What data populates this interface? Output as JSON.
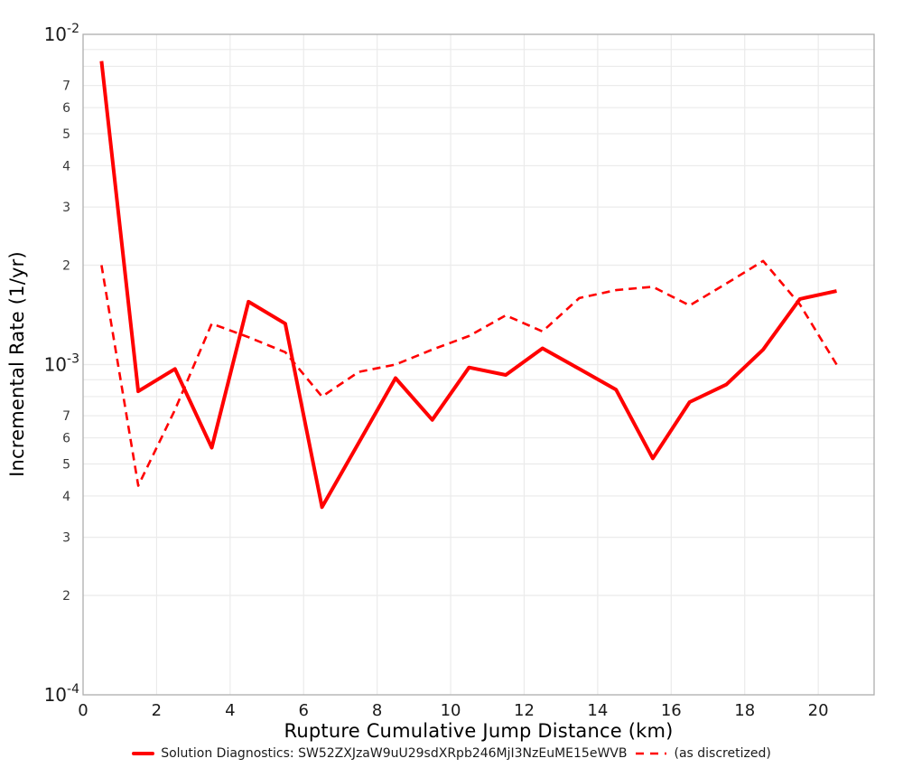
{
  "figure": {
    "background": "#ffffff",
    "grid_color": "#ebebeb",
    "border_color": "#adadad",
    "tick_color": "#3a3a3a",
    "accent_red": "#ff0000"
  },
  "chart_data": {
    "type": "line",
    "title": "",
    "xlabel": "Rupture Cumulative Jump Distance (km)",
    "ylabel": "Incremental Rate (1/yr)",
    "x_scale": "linear",
    "y_scale": "log",
    "xlim": [
      0,
      21.52
    ],
    "ylim": [
      0.0001,
      0.01
    ],
    "grid": true,
    "legend_position": "bottom-center",
    "x_ticks": [
      0,
      2,
      4,
      6,
      8,
      10,
      12,
      14,
      16,
      18,
      20
    ],
    "y_axis": {
      "major": [
        {
          "base": "10",
          "exp": "-2",
          "value": 0.01
        },
        {
          "base": "10",
          "exp": "-3",
          "value": 0.001
        },
        {
          "base": "10",
          "exp": "-4",
          "value": 0.0001
        }
      ],
      "minor_labeled": [
        7,
        6,
        5,
        4,
        3,
        2
      ],
      "minor_grid": [
        9,
        8,
        7,
        6,
        5,
        4,
        3,
        2
      ],
      "decades": [
        -3,
        -4
      ]
    },
    "x": [
      0.5,
      1.5,
      2.5,
      3.5,
      4.5,
      5.5,
      6.5,
      7.5,
      8.5,
      9.5,
      10.5,
      11.5,
      12.5,
      13.5,
      14.5,
      15.5,
      16.5,
      17.5,
      18.5,
      19.5,
      20.5
    ],
    "series": [
      {
        "name": "Solution Diagnostics: SW52ZXJzaW9uU29sdXRpb246MjI3NzEuME15eWVB",
        "style": "solid",
        "color": "#ff0000",
        "width": 4,
        "values": [
          0.0083,
          0.00083,
          0.00097,
          0.00056,
          0.00155,
          0.00133,
          0.00037,
          0.00058,
          0.00091,
          0.00068,
          0.00098,
          0.00093,
          0.00112,
          0.00097,
          0.00084,
          0.00052,
          0.00077,
          0.00087,
          0.00111,
          0.00158,
          0.00167
        ]
      },
      {
        "name": "(as discretized)",
        "style": "dashed",
        "color": "#ff0000",
        "width": 2.6,
        "dash": "9,6",
        "values": [
          0.002,
          0.00043,
          0.00073,
          0.00133,
          0.00121,
          0.00109,
          0.0008,
          0.00095,
          0.001,
          0.00111,
          0.00122,
          0.00141,
          0.00126,
          0.00159,
          0.00168,
          0.00172,
          0.00151,
          0.00176,
          0.00206,
          0.00152,
          0.001
        ]
      }
    ]
  }
}
